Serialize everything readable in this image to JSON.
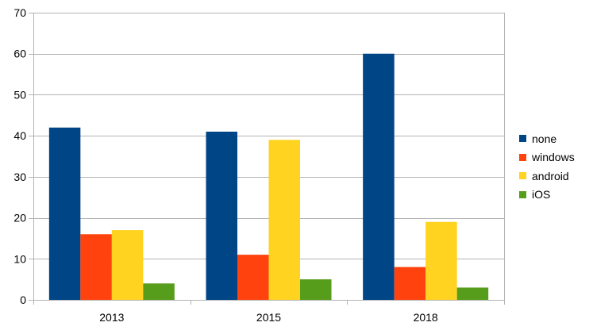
{
  "chart_data": {
    "type": "bar",
    "categories": [
      "2013",
      "2015",
      "2018"
    ],
    "series": [
      {
        "name": "none",
        "color": "#004586",
        "values": [
          42,
          41,
          60
        ]
      },
      {
        "name": "windows",
        "color": "#ff420e",
        "values": [
          16,
          11,
          8
        ]
      },
      {
        "name": "android",
        "color": "#ffd320",
        "values": [
          17,
          39,
          19
        ]
      },
      {
        "name": "iOS",
        "color": "#579d1c",
        "values": [
          4,
          5,
          3
        ]
      }
    ],
    "ylim": [
      0,
      70
    ],
    "yticks": [
      0,
      10,
      20,
      30,
      40,
      50,
      60,
      70
    ],
    "grid": true,
    "legend_position": "right"
  }
}
